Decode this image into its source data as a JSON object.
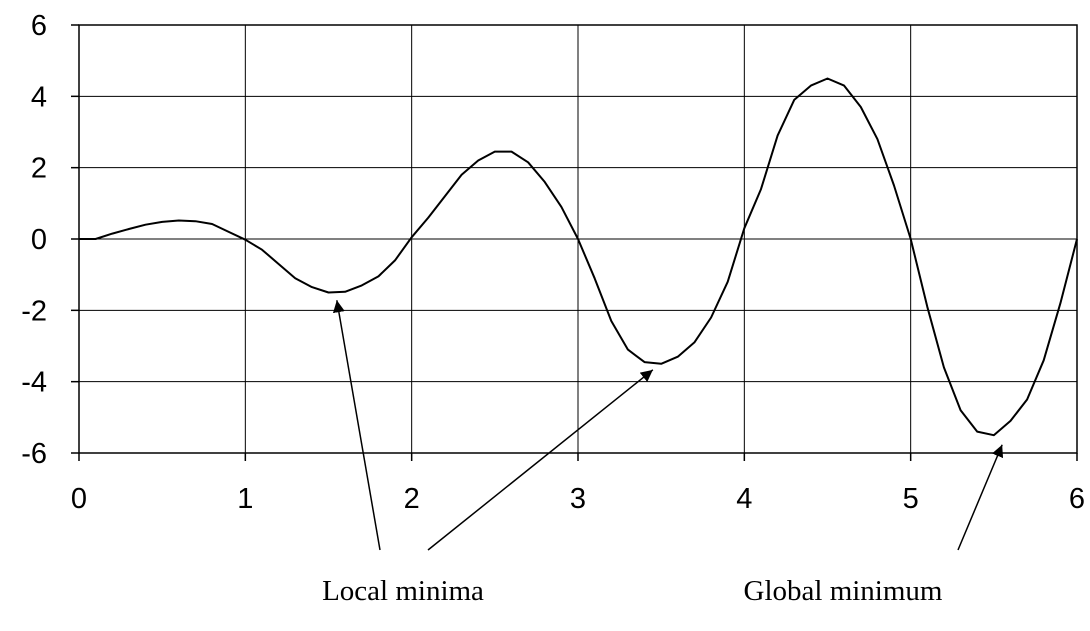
{
  "chart_data": {
    "type": "line",
    "title": "",
    "xlabel": "",
    "ylabel": "",
    "xlim": [
      0,
      6
    ],
    "ylim": [
      -6,
      6
    ],
    "xticks": [
      "0",
      "1",
      "2",
      "3",
      "4",
      "5",
      "6"
    ],
    "yticks": [
      "6",
      "4",
      "2",
      "0",
      "-2",
      "-4",
      "-6"
    ],
    "grid": true,
    "series": [
      {
        "color": "#000000",
        "x": [
          0,
          0.1,
          0.2,
          0.3,
          0.4,
          0.5,
          0.6,
          0.7,
          0.8,
          0.9,
          1.0,
          1.1,
          1.2,
          1.3,
          1.4,
          1.5,
          1.6,
          1.7,
          1.8,
          1.9,
          2.0,
          2.1,
          2.2,
          2.3,
          2.4,
          2.5,
          2.6,
          2.7,
          2.8,
          2.9,
          3.0,
          3.1,
          3.2,
          3.3,
          3.4,
          3.5,
          3.6,
          3.7,
          3.8,
          3.9,
          4.0,
          4.1,
          4.2,
          4.3,
          4.4,
          4.5,
          4.6,
          4.7,
          4.8,
          4.9,
          5.0,
          5.1,
          5.2,
          5.3,
          5.4,
          5.5,
          5.6,
          5.7,
          5.8,
          5.9,
          6.0
        ],
        "y": [
          0,
          0.0,
          0.15,
          0.28,
          0.4,
          0.48,
          0.52,
          0.5,
          0.42,
          0.2,
          -0.02,
          -0.3,
          -0.7,
          -1.1,
          -1.35,
          -1.5,
          -1.48,
          -1.3,
          -1.05,
          -0.6,
          0.05,
          0.6,
          1.2,
          1.8,
          2.2,
          2.45,
          2.45,
          2.15,
          1.6,
          0.9,
          0.0,
          -1.1,
          -2.3,
          -3.1,
          -3.45,
          -3.5,
          -3.3,
          -2.9,
          -2.2,
          -1.2,
          0.3,
          1.4,
          2.9,
          3.9,
          4.3,
          4.5,
          4.3,
          3.7,
          2.8,
          1.5,
          0.0,
          -1.9,
          -3.6,
          -4.8,
          -5.4,
          -5.5,
          -5.1,
          -4.5,
          -3.4,
          -1.8,
          0.0
        ]
      }
    ],
    "annotations": [
      {
        "text": "Local minima",
        "targets": [
          [
            1.55,
            -1.55
          ],
          [
            3.45,
            -3.5
          ]
        ]
      },
      {
        "text": "Global minimum",
        "targets": [
          [
            5.55,
            -5.6
          ]
        ]
      }
    ]
  }
}
